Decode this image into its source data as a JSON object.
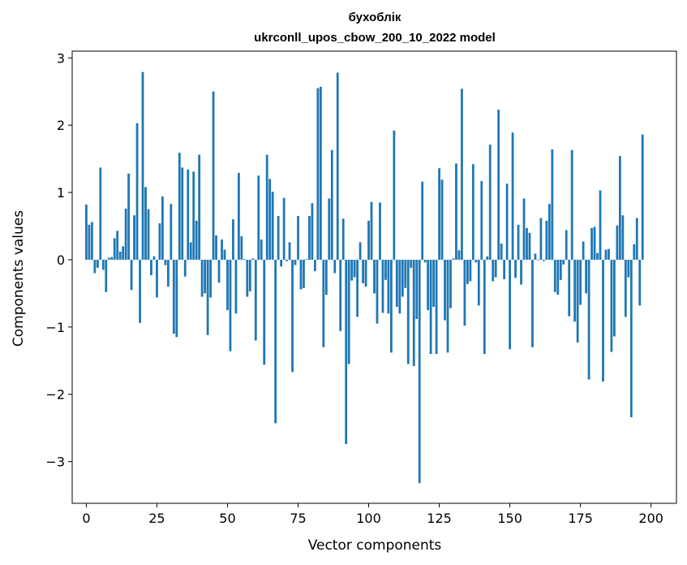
{
  "chart_data": {
    "type": "bar",
    "title": "бухоблік",
    "subtitle": "ukrconll_upos_cbow_200_10_2022 model",
    "xlabel": "Vector components",
    "ylabel": "Components values",
    "xlim": [
      -5,
      209
    ],
    "ylim": [
      -3.62,
      3.1
    ],
    "xticks": [
      0,
      25,
      50,
      75,
      100,
      125,
      150,
      175,
      200
    ],
    "yticks": [
      -3,
      -2,
      -1,
      0,
      1,
      2,
      3
    ],
    "grid": false,
    "bar_color": "#1f77b4",
    "values": [
      0.82,
      0.52,
      0.56,
      -0.2,
      -0.12,
      1.37,
      -0.15,
      -0.48,
      0.03,
      0.04,
      0.32,
      0.43,
      0.12,
      0.2,
      0.76,
      1.28,
      -0.45,
      0.66,
      2.03,
      -0.94,
      2.79,
      1.08,
      0.75,
      -0.23,
      0.05,
      -0.56,
      0.54,
      0.94,
      -0.08,
      -0.4,
      0.83,
      -1.1,
      -1.15,
      1.59,
      1.37,
      -0.25,
      1.34,
      0.26,
      1.31,
      0.58,
      1.56,
      -0.55,
      -0.5,
      -1.12,
      -0.56,
      2.5,
      0.36,
      -0.34,
      0.3,
      0.15,
      -0.75,
      -1.36,
      0.6,
      -0.8,
      1.29,
      0.35,
      0.01,
      -0.55,
      -0.47,
      0.02,
      -1.2,
      1.25,
      0.3,
      -1.56,
      1.56,
      1.2,
      1.01,
      -2.43,
      0.65,
      -0.1,
      0.92,
      -0.02,
      0.26,
      -1.67,
      -0.08,
      0.65,
      -0.44,
      -0.42,
      0.01,
      0.65,
      0.84,
      -0.17,
      2.55,
      2.57,
      -1.3,
      -0.52,
      0.91,
      1.63,
      -0.2,
      2.78,
      -1.06,
      0.61,
      -2.74,
      -1.55,
      -0.31,
      -0.26,
      -0.85,
      0.26,
      -0.35,
      -0.4,
      0.58,
      0.86,
      -0.5,
      -0.95,
      0.85,
      -0.79,
      -0.3,
      -0.8,
      -1.38,
      1.92,
      -0.7,
      -0.8,
      -0.55,
      -0.42,
      -1.55,
      -0.12,
      -1.58,
      -0.88,
      -3.32,
      1.16,
      -0.04,
      -0.75,
      -1.4,
      -0.7,
      -1.4,
      1.36,
      1.19,
      -0.9,
      -1.38,
      -0.72,
      0.02,
      1.43,
      0.14,
      2.54,
      -0.98,
      -0.36,
      -0.32,
      1.42,
      -0.04,
      -0.68,
      1.17,
      -1.4,
      0.05,
      1.71,
      -0.32,
      -0.26,
      2.23,
      0.24,
      -0.29,
      1.13,
      -1.33,
      1.89,
      -0.27,
      0.52,
      -0.37,
      0.91,
      0.47,
      0.4,
      -1.3,
      0.09,
      -0.01,
      0.62,
      -0.02,
      0.58,
      0.83,
      1.64,
      -0.48,
      -0.52,
      -0.3,
      -0.07,
      0.44,
      -0.84,
      1.63,
      -0.92,
      -1.23,
      -0.67,
      0.27,
      -0.5,
      -1.78,
      0.47,
      0.49,
      0.1,
      1.03,
      -1.81,
      0.15,
      0.16,
      -1.37,
      -1.14,
      0.51,
      1.54,
      0.66,
      -0.85,
      -0.26,
      -2.34,
      0.23,
      0.62,
      -0.68,
      1.86
    ]
  }
}
